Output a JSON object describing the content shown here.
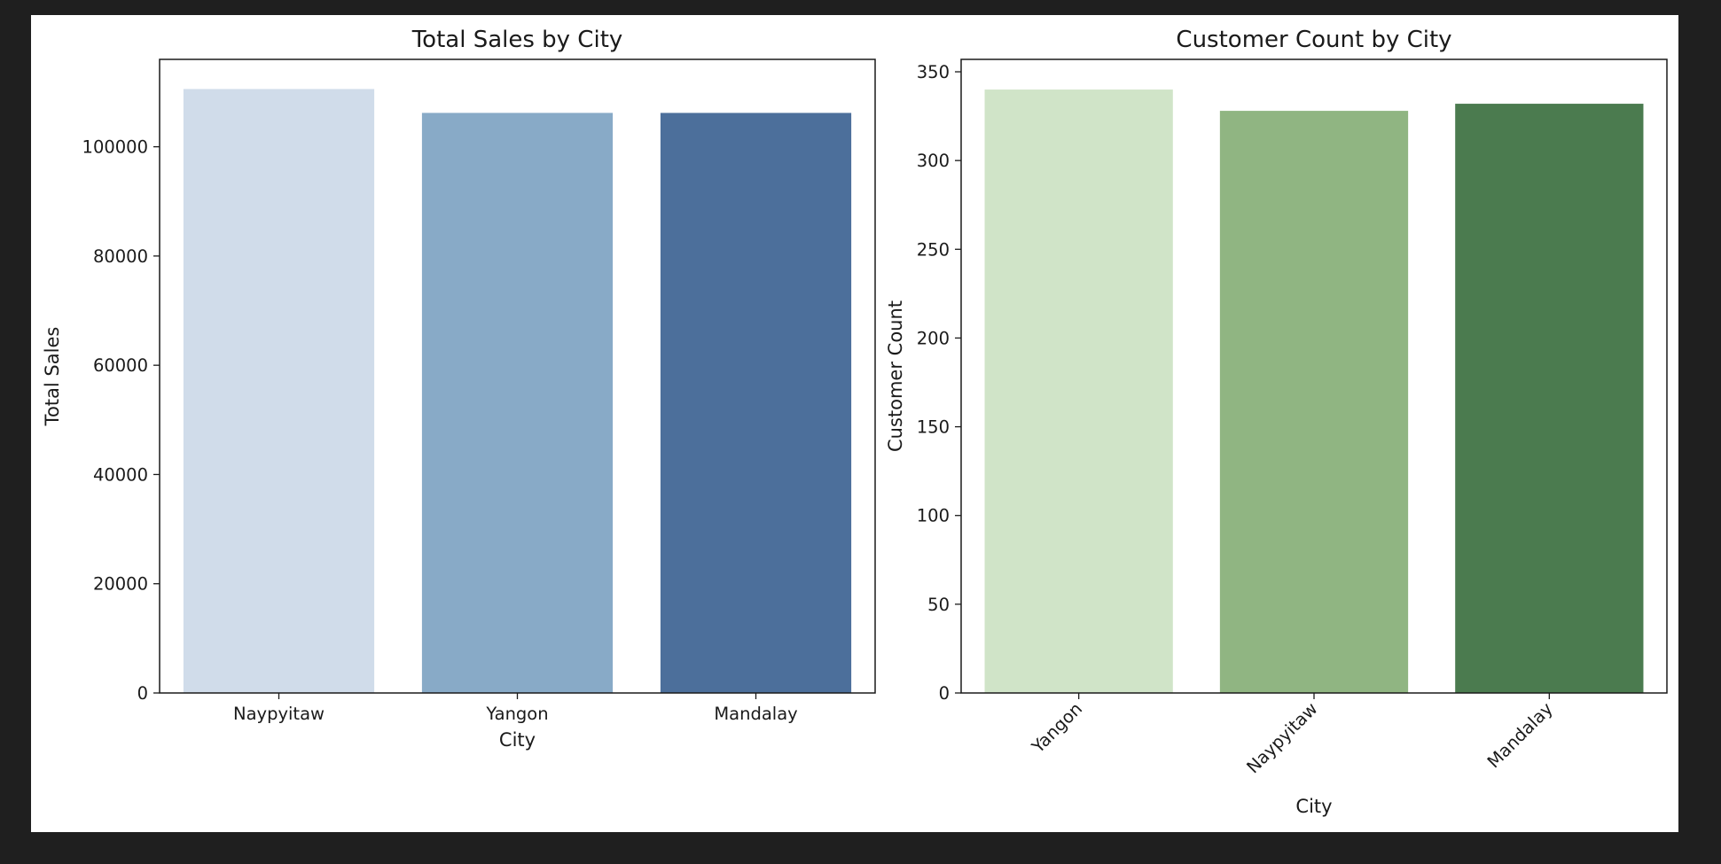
{
  "chart_data": [
    {
      "type": "bar",
      "title": "Total Sales by City",
      "xlabel": "City",
      "ylabel": "Total Sales",
      "categories": [
        "Naypyitaw",
        "Yangon",
        "Mandalay"
      ],
      "values": [
        110568.7,
        106200.4,
        106197.7
      ],
      "ylim": [
        0,
        116000
      ],
      "yticks": [
        0,
        20000,
        40000,
        60000,
        80000,
        100000
      ],
      "ytick_labels": [
        "0",
        "20000",
        "40000",
        "60000",
        "80000",
        "100000"
      ],
      "colors": [
        "#d0dcea",
        "#88aac7",
        "#4c6f9b"
      ],
      "xtick_rotation": 0,
      "grid": false,
      "legend": "none"
    },
    {
      "type": "bar",
      "title": "Customer Count by City",
      "xlabel": "City",
      "ylabel": "Customer Count",
      "categories": [
        "Yangon",
        "Naypyitaw",
        "Mandalay"
      ],
      "values": [
        340,
        328,
        332
      ],
      "ylim": [
        0,
        357
      ],
      "yticks": [
        0,
        50,
        100,
        150,
        200,
        250,
        300,
        350
      ],
      "ytick_labels": [
        "0",
        "50",
        "100",
        "150",
        "200",
        "250",
        "300",
        "350"
      ],
      "colors": [
        "#d0e4c8",
        "#90b582",
        "#4b7b4f"
      ],
      "xtick_rotation": -45,
      "grid": false,
      "legend": "none"
    }
  ]
}
